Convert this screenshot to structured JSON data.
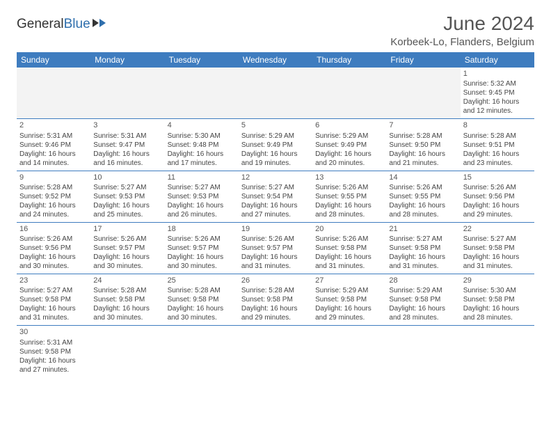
{
  "logo": {
    "part1": "General",
    "part2": "Blue"
  },
  "title": "June 2024",
  "location": "Korbeek-Lo, Flanders, Belgium",
  "colors": {
    "header_bg": "#3e7cbf",
    "header_text": "#ffffff",
    "accent": "#2f6fad",
    "text": "#444444",
    "blank_bg": "#f3f3f3"
  },
  "weekdays": [
    "Sunday",
    "Monday",
    "Tuesday",
    "Wednesday",
    "Thursday",
    "Friday",
    "Saturday"
  ],
  "weeks": [
    [
      {
        "blank": true
      },
      {
        "blank": true
      },
      {
        "blank": true
      },
      {
        "blank": true
      },
      {
        "blank": true
      },
      {
        "blank": true
      },
      {
        "day": "1",
        "sunrise": "Sunrise: 5:32 AM",
        "sunset": "Sunset: 9:45 PM",
        "day1": "Daylight: 16 hours",
        "day2": "and 12 minutes."
      }
    ],
    [
      {
        "day": "2",
        "sunrise": "Sunrise: 5:31 AM",
        "sunset": "Sunset: 9:46 PM",
        "day1": "Daylight: 16 hours",
        "day2": "and 14 minutes."
      },
      {
        "day": "3",
        "sunrise": "Sunrise: 5:31 AM",
        "sunset": "Sunset: 9:47 PM",
        "day1": "Daylight: 16 hours",
        "day2": "and 16 minutes."
      },
      {
        "day": "4",
        "sunrise": "Sunrise: 5:30 AM",
        "sunset": "Sunset: 9:48 PM",
        "day1": "Daylight: 16 hours",
        "day2": "and 17 minutes."
      },
      {
        "day": "5",
        "sunrise": "Sunrise: 5:29 AM",
        "sunset": "Sunset: 9:49 PM",
        "day1": "Daylight: 16 hours",
        "day2": "and 19 minutes."
      },
      {
        "day": "6",
        "sunrise": "Sunrise: 5:29 AM",
        "sunset": "Sunset: 9:49 PM",
        "day1": "Daylight: 16 hours",
        "day2": "and 20 minutes."
      },
      {
        "day": "7",
        "sunrise": "Sunrise: 5:28 AM",
        "sunset": "Sunset: 9:50 PM",
        "day1": "Daylight: 16 hours",
        "day2": "and 21 minutes."
      },
      {
        "day": "8",
        "sunrise": "Sunrise: 5:28 AM",
        "sunset": "Sunset: 9:51 PM",
        "day1": "Daylight: 16 hours",
        "day2": "and 23 minutes."
      }
    ],
    [
      {
        "day": "9",
        "sunrise": "Sunrise: 5:28 AM",
        "sunset": "Sunset: 9:52 PM",
        "day1": "Daylight: 16 hours",
        "day2": "and 24 minutes."
      },
      {
        "day": "10",
        "sunrise": "Sunrise: 5:27 AM",
        "sunset": "Sunset: 9:53 PM",
        "day1": "Daylight: 16 hours",
        "day2": "and 25 minutes."
      },
      {
        "day": "11",
        "sunrise": "Sunrise: 5:27 AM",
        "sunset": "Sunset: 9:53 PM",
        "day1": "Daylight: 16 hours",
        "day2": "and 26 minutes."
      },
      {
        "day": "12",
        "sunrise": "Sunrise: 5:27 AM",
        "sunset": "Sunset: 9:54 PM",
        "day1": "Daylight: 16 hours",
        "day2": "and 27 minutes."
      },
      {
        "day": "13",
        "sunrise": "Sunrise: 5:26 AM",
        "sunset": "Sunset: 9:55 PM",
        "day1": "Daylight: 16 hours",
        "day2": "and 28 minutes."
      },
      {
        "day": "14",
        "sunrise": "Sunrise: 5:26 AM",
        "sunset": "Sunset: 9:55 PM",
        "day1": "Daylight: 16 hours",
        "day2": "and 28 minutes."
      },
      {
        "day": "15",
        "sunrise": "Sunrise: 5:26 AM",
        "sunset": "Sunset: 9:56 PM",
        "day1": "Daylight: 16 hours",
        "day2": "and 29 minutes."
      }
    ],
    [
      {
        "day": "16",
        "sunrise": "Sunrise: 5:26 AM",
        "sunset": "Sunset: 9:56 PM",
        "day1": "Daylight: 16 hours",
        "day2": "and 30 minutes."
      },
      {
        "day": "17",
        "sunrise": "Sunrise: 5:26 AM",
        "sunset": "Sunset: 9:57 PM",
        "day1": "Daylight: 16 hours",
        "day2": "and 30 minutes."
      },
      {
        "day": "18",
        "sunrise": "Sunrise: 5:26 AM",
        "sunset": "Sunset: 9:57 PM",
        "day1": "Daylight: 16 hours",
        "day2": "and 30 minutes."
      },
      {
        "day": "19",
        "sunrise": "Sunrise: 5:26 AM",
        "sunset": "Sunset: 9:57 PM",
        "day1": "Daylight: 16 hours",
        "day2": "and 31 minutes."
      },
      {
        "day": "20",
        "sunrise": "Sunrise: 5:26 AM",
        "sunset": "Sunset: 9:58 PM",
        "day1": "Daylight: 16 hours",
        "day2": "and 31 minutes."
      },
      {
        "day": "21",
        "sunrise": "Sunrise: 5:27 AM",
        "sunset": "Sunset: 9:58 PM",
        "day1": "Daylight: 16 hours",
        "day2": "and 31 minutes."
      },
      {
        "day": "22",
        "sunrise": "Sunrise: 5:27 AM",
        "sunset": "Sunset: 9:58 PM",
        "day1": "Daylight: 16 hours",
        "day2": "and 31 minutes."
      }
    ],
    [
      {
        "day": "23",
        "sunrise": "Sunrise: 5:27 AM",
        "sunset": "Sunset: 9:58 PM",
        "day1": "Daylight: 16 hours",
        "day2": "and 31 minutes."
      },
      {
        "day": "24",
        "sunrise": "Sunrise: 5:28 AM",
        "sunset": "Sunset: 9:58 PM",
        "day1": "Daylight: 16 hours",
        "day2": "and 30 minutes."
      },
      {
        "day": "25",
        "sunrise": "Sunrise: 5:28 AM",
        "sunset": "Sunset: 9:58 PM",
        "day1": "Daylight: 16 hours",
        "day2": "and 30 minutes."
      },
      {
        "day": "26",
        "sunrise": "Sunrise: 5:28 AM",
        "sunset": "Sunset: 9:58 PM",
        "day1": "Daylight: 16 hours",
        "day2": "and 29 minutes."
      },
      {
        "day": "27",
        "sunrise": "Sunrise: 5:29 AM",
        "sunset": "Sunset: 9:58 PM",
        "day1": "Daylight: 16 hours",
        "day2": "and 29 minutes."
      },
      {
        "day": "28",
        "sunrise": "Sunrise: 5:29 AM",
        "sunset": "Sunset: 9:58 PM",
        "day1": "Daylight: 16 hours",
        "day2": "and 28 minutes."
      },
      {
        "day": "29",
        "sunrise": "Sunrise: 5:30 AM",
        "sunset": "Sunset: 9:58 PM",
        "day1": "Daylight: 16 hours",
        "day2": "and 28 minutes."
      }
    ],
    [
      {
        "day": "30",
        "sunrise": "Sunrise: 5:31 AM",
        "sunset": "Sunset: 9:58 PM",
        "day1": "Daylight: 16 hours",
        "day2": "and 27 minutes."
      },
      {
        "empty": true
      },
      {
        "empty": true
      },
      {
        "empty": true
      },
      {
        "empty": true
      },
      {
        "empty": true
      },
      {
        "empty": true
      }
    ]
  ]
}
